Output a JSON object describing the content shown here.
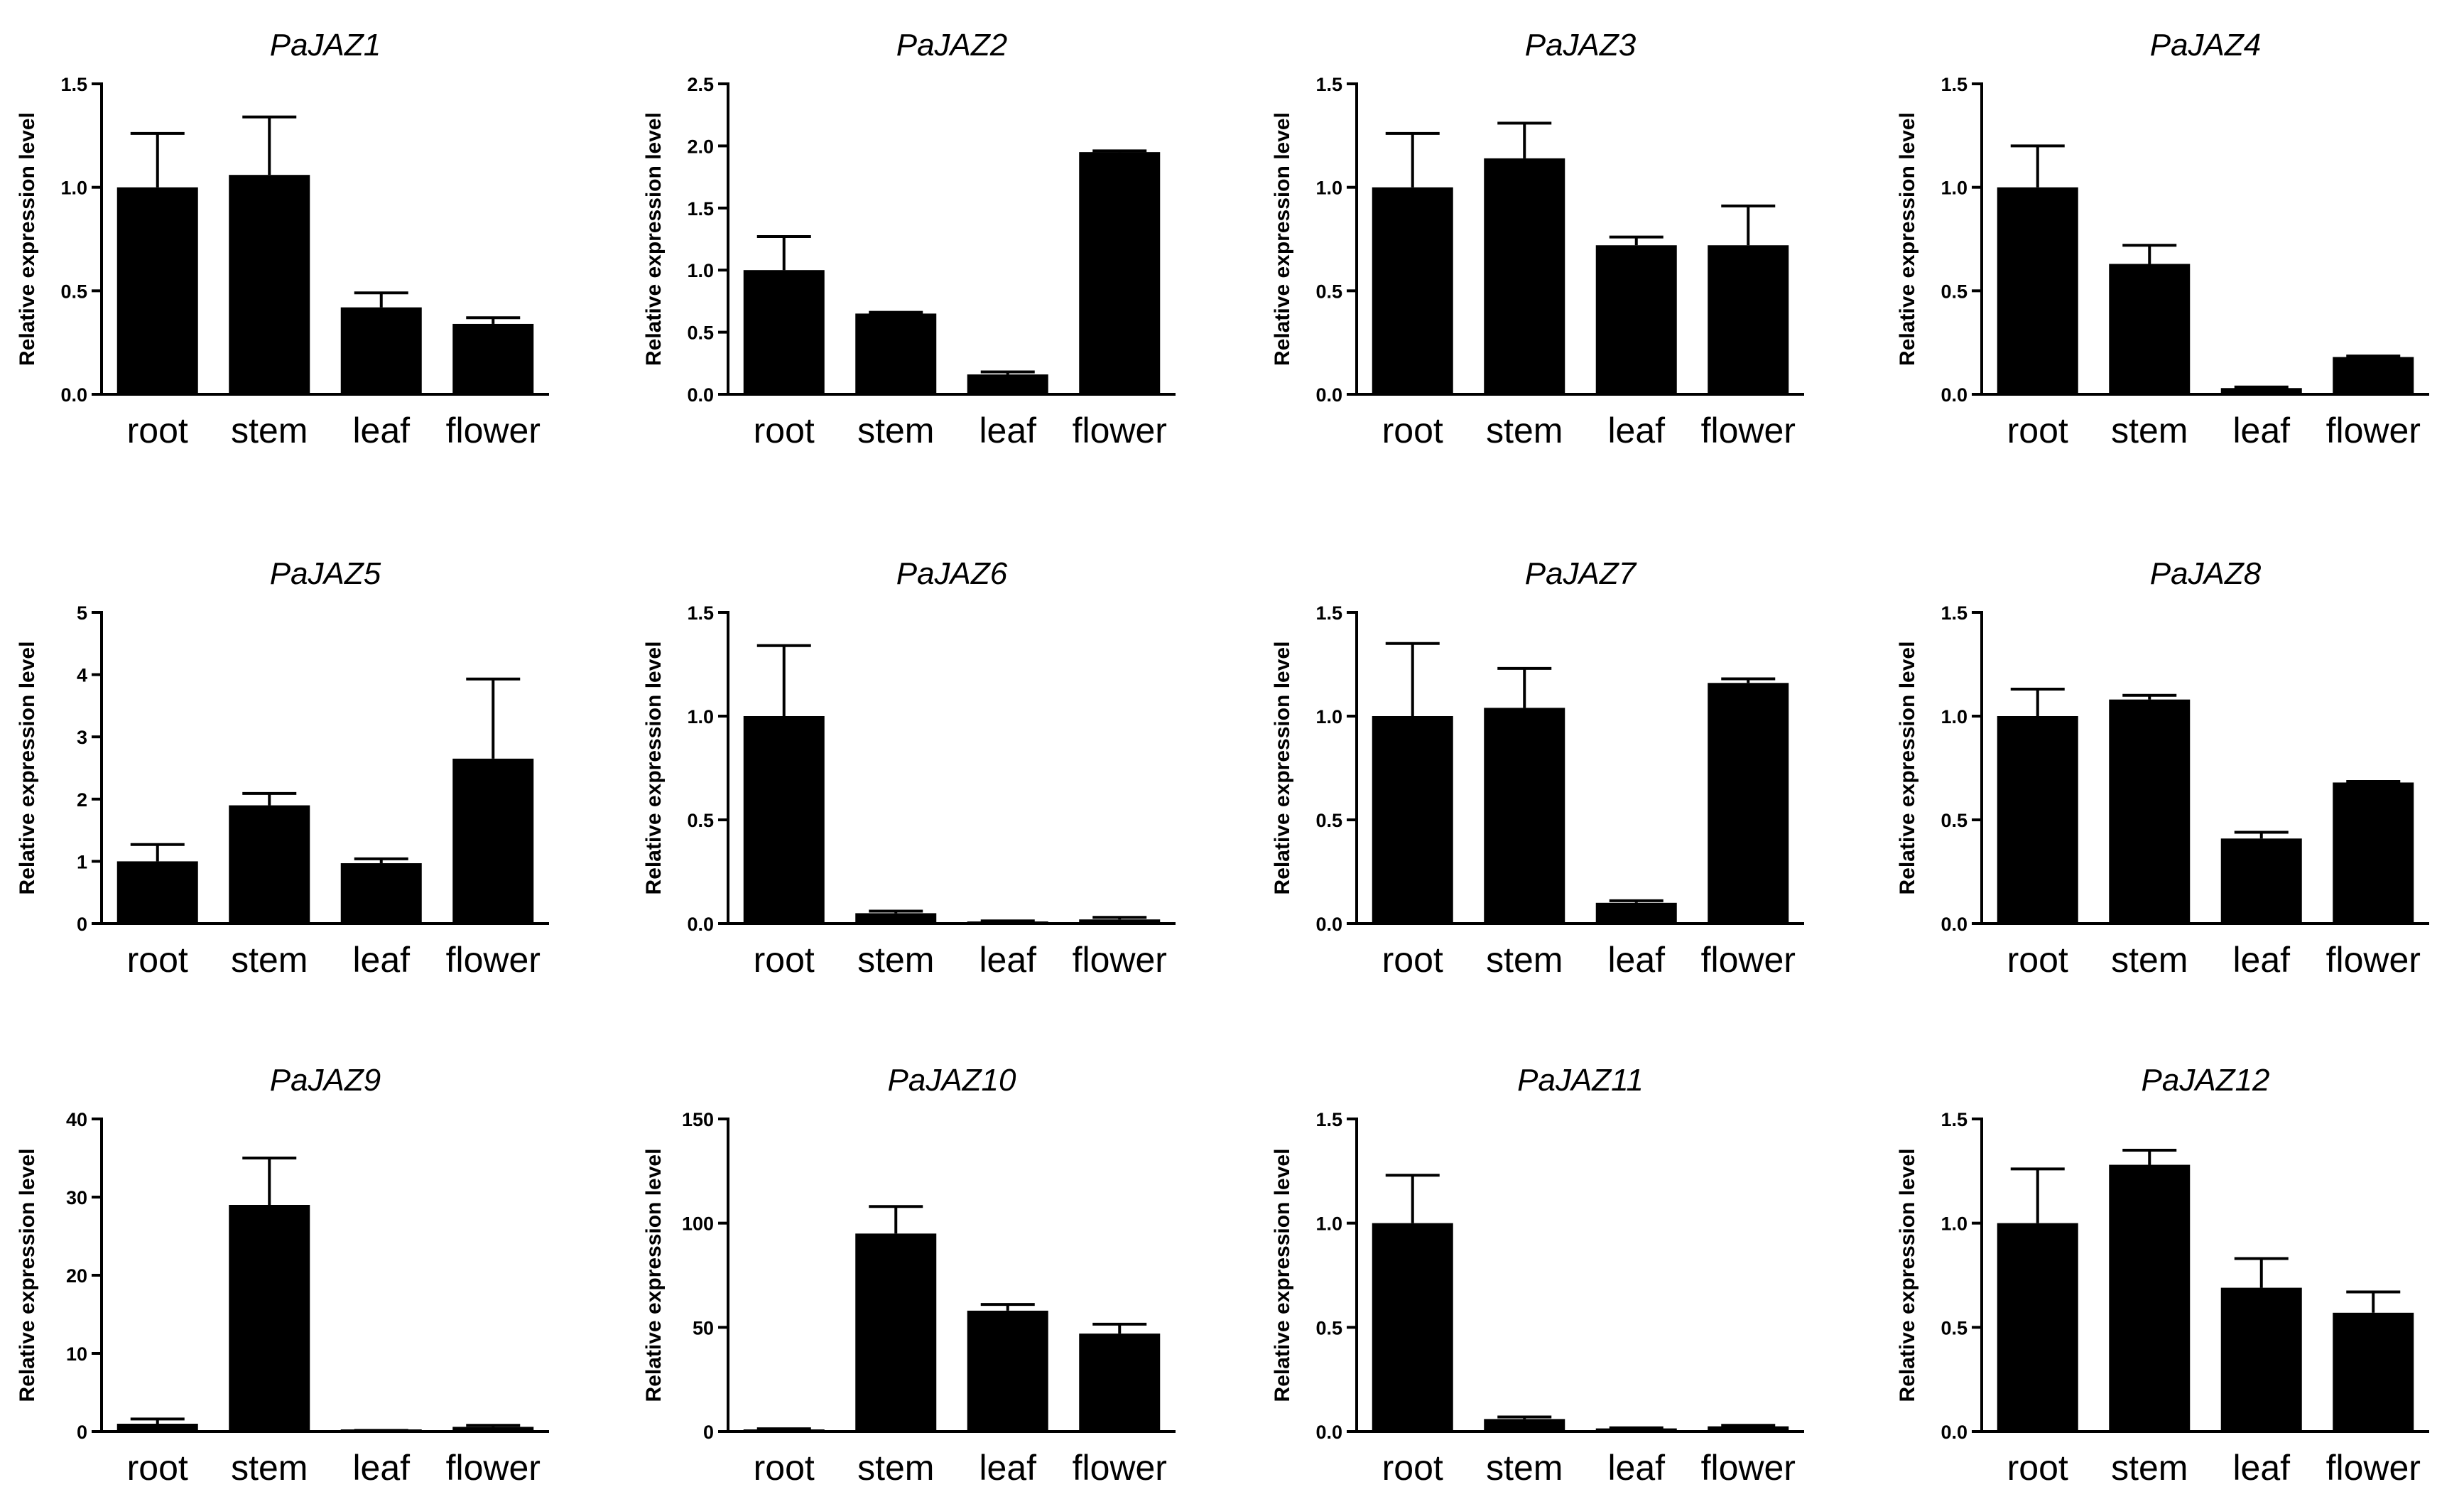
{
  "chart_data": [
    {
      "type": "bar",
      "title": "PaJAZ1",
      "ylabel": "Relative expression level",
      "xlabel": "",
      "categories": [
        "root",
        "stem",
        "leaf",
        "flower"
      ],
      "values": [
        1.0,
        1.06,
        0.42,
        0.34
      ],
      "errors": [
        0.26,
        0.28,
        0.07,
        0.03
      ],
      "ylim": [
        0,
        1.5
      ],
      "yticks": [
        "0.0",
        "0.5",
        "1.0",
        "1.5"
      ],
      "grid": false
    },
    {
      "type": "bar",
      "title": "PaJAZ2",
      "ylabel": "Relative expression level",
      "xlabel": "",
      "categories": [
        "root",
        "stem",
        "leaf",
        "flower"
      ],
      "values": [
        1.0,
        0.65,
        0.16,
        1.95
      ],
      "errors": [
        0.27,
        0.01,
        0.02,
        0.01
      ],
      "ylim": [
        0,
        2.5
      ],
      "yticks": [
        "0.0",
        "0.5",
        "1.0",
        "1.5",
        "2.0",
        "2.5"
      ],
      "grid": false
    },
    {
      "type": "bar",
      "title": "PaJAZ3",
      "ylabel": "Relative expression level",
      "xlabel": "",
      "categories": [
        "root",
        "stem",
        "leaf",
        "flower"
      ],
      "values": [
        1.0,
        1.14,
        0.72,
        0.72
      ],
      "errors": [
        0.26,
        0.17,
        0.04,
        0.19
      ],
      "ylim": [
        0,
        1.5
      ],
      "yticks": [
        "0.0",
        "0.5",
        "1.0",
        "1.5"
      ],
      "grid": false
    },
    {
      "type": "bar",
      "title": "PaJAZ4",
      "ylabel": "Relative expression level",
      "xlabel": "",
      "categories": [
        "root",
        "stem",
        "leaf",
        "flower"
      ],
      "values": [
        1.0,
        0.63,
        0.03,
        0.18
      ],
      "errors": [
        0.2,
        0.09,
        0.005,
        0.005
      ],
      "ylim": [
        0,
        1.5
      ],
      "yticks": [
        "0.0",
        "0.5",
        "1.0",
        "1.5"
      ],
      "grid": false
    },
    {
      "type": "bar",
      "title": "PaJAZ5",
      "ylabel": "Relative expression level",
      "xlabel": "",
      "categories": [
        "root",
        "stem",
        "leaf",
        "flower"
      ],
      "values": [
        1.0,
        1.9,
        0.97,
        2.65
      ],
      "errors": [
        0.27,
        0.19,
        0.07,
        1.28
      ],
      "ylim": [
        0,
        5
      ],
      "yticks": [
        "0",
        "1",
        "2",
        "3",
        "4",
        "5"
      ],
      "grid": false
    },
    {
      "type": "bar",
      "title": "PaJAZ6",
      "ylabel": "Relative expression level",
      "xlabel": "",
      "categories": [
        "root",
        "stem",
        "leaf",
        "flower"
      ],
      "values": [
        1.0,
        0.05,
        0.01,
        0.02
      ],
      "errors": [
        0.34,
        0.01,
        0.003,
        0.01
      ],
      "ylim": [
        0,
        1.5
      ],
      "yticks": [
        "0.0",
        "0.5",
        "1.0",
        "1.5"
      ],
      "grid": false
    },
    {
      "type": "bar",
      "title": "PaJAZ7",
      "ylabel": "Relative expression level",
      "xlabel": "",
      "categories": [
        "root",
        "stem",
        "leaf",
        "flower"
      ],
      "values": [
        1.0,
        1.04,
        0.1,
        1.16
      ],
      "errors": [
        0.35,
        0.19,
        0.01,
        0.02
      ],
      "ylim": [
        0,
        1.5
      ],
      "yticks": [
        "0.0",
        "0.5",
        "1.0",
        "1.5"
      ],
      "grid": false
    },
    {
      "type": "bar",
      "title": "PaJAZ8",
      "ylabel": "Relative expression level",
      "xlabel": "",
      "categories": [
        "root",
        "stem",
        "leaf",
        "flower"
      ],
      "values": [
        1.0,
        1.08,
        0.41,
        0.68
      ],
      "errors": [
        0.13,
        0.02,
        0.03,
        0.005
      ],
      "ylim": [
        0,
        1.5
      ],
      "yticks": [
        "0.0",
        "0.5",
        "1.0",
        "1.5"
      ],
      "grid": false
    },
    {
      "type": "bar",
      "title": "PaJAZ9",
      "ylabel": "Relative expression level",
      "xlabel": "",
      "categories": [
        "root",
        "stem",
        "leaf",
        "flower"
      ],
      "values": [
        1.0,
        29.0,
        0.1,
        0.6
      ],
      "errors": [
        0.6,
        6.0,
        0.05,
        0.2
      ],
      "ylim": [
        0,
        40
      ],
      "yticks": [
        "0",
        "10",
        "20",
        "30",
        "40"
      ],
      "grid": false
    },
    {
      "type": "bar",
      "title": "PaJAZ10",
      "ylabel": "Relative expression level",
      "xlabel": "",
      "categories": [
        "root",
        "stem",
        "leaf",
        "flower"
      ],
      "values": [
        1.0,
        95.0,
        58.0,
        47.0
      ],
      "errors": [
        0.3,
        13.0,
        3.0,
        4.5
      ],
      "ylim": [
        0,
        150
      ],
      "yticks": [
        "0",
        "50",
        "100",
        "150"
      ],
      "grid": false
    },
    {
      "type": "bar",
      "title": "PaJAZ11",
      "ylabel": "Relative expression level",
      "xlabel": "",
      "categories": [
        "root",
        "stem",
        "leaf",
        "flower"
      ],
      "values": [
        1.0,
        0.06,
        0.015,
        0.025
      ],
      "errors": [
        0.23,
        0.01,
        0.003,
        0.005
      ],
      "ylim": [
        0,
        1.5
      ],
      "yticks": [
        "0.0",
        "0.5",
        "1.0",
        "1.5"
      ],
      "grid": false
    },
    {
      "type": "bar",
      "title": "PaJAZ12",
      "ylabel": "Relative expression level",
      "xlabel": "",
      "categories": [
        "root",
        "stem",
        "leaf",
        "flower"
      ],
      "values": [
        1.0,
        1.28,
        0.69,
        0.57
      ],
      "errors": [
        0.26,
        0.07,
        0.14,
        0.1
      ],
      "ylim": [
        0,
        1.5
      ],
      "yticks": [
        "0.0",
        "0.5",
        "1.0",
        "1.5"
      ],
      "grid": false
    }
  ],
  "colors": {
    "bar": "#000000",
    "axis": "#000000",
    "background": "#ffffff"
  }
}
